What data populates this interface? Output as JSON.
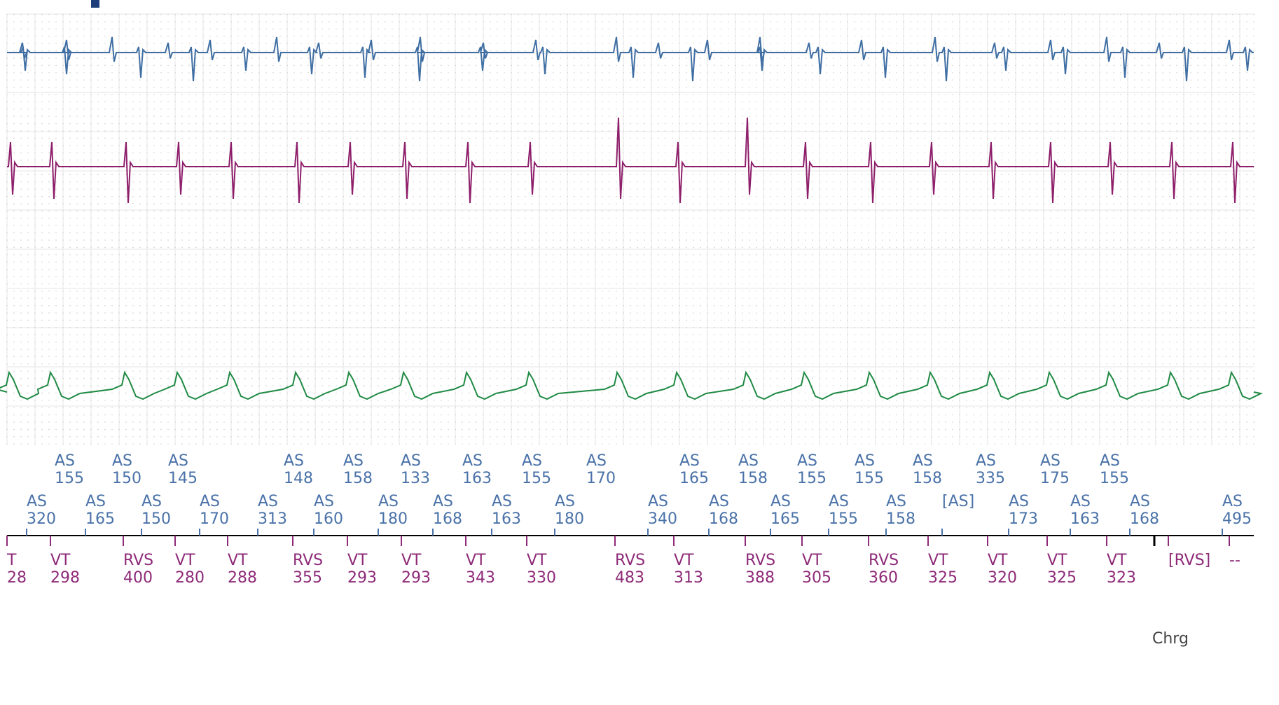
{
  "colors": {
    "channel_top": "#3f6ea3",
    "channel_mid": "#8e1f6b",
    "channel_bottom": "#1f8a44",
    "atrial_marker": "#4a72a8",
    "ventricular_marker": "#8e2a78",
    "marker_axis": "#000000",
    "grid_dot": "#c2c2c2",
    "grid_line": "#e4e4e4",
    "corner_marker": "#1f3f7a"
  },
  "icons": {
    "corner": "square-marker-icon"
  },
  "charge_label": "Chrg",
  "chart_data": {
    "type": "line",
    "grid": true,
    "channels": [
      {
        "name": "",
        "color_key": "channel_top",
        "shape": "biphasic-small"
      },
      {
        "name": "",
        "color_key": "channel_mid",
        "shape": "sharp-deflection"
      },
      {
        "name": "",
        "color_key": "channel_bottom",
        "shape": "far-field"
      }
    ],
    "atrial_row1": [
      {
        "label": "AS",
        "value": "155"
      },
      {
        "label": "AS",
        "value": "150"
      },
      {
        "label": "AS",
        "value": "145"
      },
      {
        "label": "AS",
        "value": "148"
      },
      {
        "label": "AS",
        "value": "158"
      },
      {
        "label": "AS",
        "value": "133"
      },
      {
        "label": "AS",
        "value": "163"
      },
      {
        "label": "AS",
        "value": "155"
      },
      {
        "label": "AS",
        "value": "170"
      },
      {
        "label": "AS",
        "value": "165"
      },
      {
        "label": "AS",
        "value": "158"
      },
      {
        "label": "AS",
        "value": "155"
      },
      {
        "label": "AS",
        "value": "155"
      },
      {
        "label": "AS",
        "value": "158"
      },
      {
        "label": "AS",
        "value": "335"
      },
      {
        "label": "AS",
        "value": "175"
      },
      {
        "label": "AS",
        "value": "155"
      }
    ],
    "atrial_row2": [
      {
        "label": "AS",
        "value": "320"
      },
      {
        "label": "AS",
        "value": "165"
      },
      {
        "label": "AS",
        "value": "150"
      },
      {
        "label": "AS",
        "value": "170"
      },
      {
        "label": "AS",
        "value": "313"
      },
      {
        "label": "AS",
        "value": "160"
      },
      {
        "label": "AS",
        "value": "180"
      },
      {
        "label": "AS",
        "value": "168"
      },
      {
        "label": "AS",
        "value": "163"
      },
      {
        "label": "AS",
        "value": "180"
      },
      {
        "label": "AS",
        "value": "340"
      },
      {
        "label": "AS",
        "value": "168"
      },
      {
        "label": "AS",
        "value": "165"
      },
      {
        "label": "AS",
        "value": "155"
      },
      {
        "label": "AS",
        "value": "158"
      },
      {
        "label": "[AS]",
        "value": ""
      },
      {
        "label": "AS",
        "value": "173"
      },
      {
        "label": "AS",
        "value": "163"
      },
      {
        "label": "AS",
        "value": "168"
      },
      {
        "label": "AS",
        "value": "495"
      }
    ],
    "ventricular": [
      {
        "label": "T",
        "value": "28"
      },
      {
        "label": "VT",
        "value": "298"
      },
      {
        "label": "RVS",
        "value": "400"
      },
      {
        "label": "VT",
        "value": "280"
      },
      {
        "label": "VT",
        "value": "288"
      },
      {
        "label": "RVS",
        "value": "355"
      },
      {
        "label": "VT",
        "value": "293"
      },
      {
        "label": "VT",
        "value": "293"
      },
      {
        "label": "VT",
        "value": "343"
      },
      {
        "label": "VT",
        "value": "330"
      },
      {
        "label": "RVS",
        "value": "483"
      },
      {
        "label": "VT",
        "value": "313"
      },
      {
        "label": "RVS",
        "value": "388"
      },
      {
        "label": "VT",
        "value": "305"
      },
      {
        "label": "RVS",
        "value": "360"
      },
      {
        "label": "VT",
        "value": "325"
      },
      {
        "label": "VT",
        "value": "320"
      },
      {
        "label": "VT",
        "value": "325"
      },
      {
        "label": "VT",
        "value": "323"
      },
      {
        "label": "[RVS]",
        "value": ""
      },
      {
        "label": "--",
        "value": ""
      }
    ]
  }
}
